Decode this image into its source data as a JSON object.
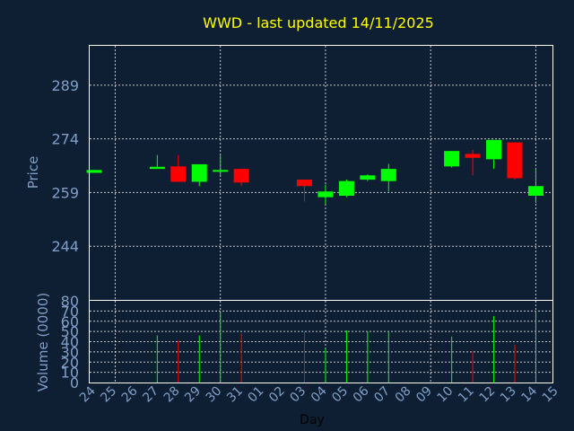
{
  "chart_data": {
    "type": "candlestick",
    "title": "WWD - last updated 14/11/2025",
    "price_panel": {
      "ylabel": "Price",
      "yticks": [
        244,
        259,
        274,
        289
      ],
      "ylim": [
        229,
        300
      ]
    },
    "volume_panel": {
      "ylabel": "Volume (0000)",
      "yticks": [
        0,
        10,
        20,
        30,
        40,
        50,
        60,
        70,
        80
      ],
      "ylim": [
        0,
        80
      ]
    },
    "xlabel": "Day",
    "x_ticks": [
      "24",
      "25",
      "26",
      "27",
      "28",
      "29",
      "30",
      "31",
      "01",
      "02",
      "03",
      "04",
      "05",
      "06",
      "07",
      "08",
      "09",
      "10",
      "11",
      "12",
      "13",
      "14",
      "15"
    ],
    "colors": {
      "up": "#00ff00",
      "down": "#ff0000",
      "title": "#ffff00",
      "background": "#0f1f33"
    },
    "candles": [
      {
        "day": "24",
        "open": 264.5,
        "close": 265.3,
        "high": 265.3,
        "low": 264.5,
        "volume": 0
      },
      {
        "day": "27",
        "open": 265.6,
        "close": 266.2,
        "high": 269.5,
        "low": 265.6,
        "volume": 46
      },
      {
        "day": "28",
        "open": 266.3,
        "close": 262.0,
        "high": 269.5,
        "low": 262.0,
        "volume": 41
      },
      {
        "day": "29",
        "open": 262.0,
        "close": 266.9,
        "high": 266.9,
        "low": 260.8,
        "volume": 46
      },
      {
        "day": "30",
        "open": 264.8,
        "close": 265.3,
        "high": 269.5,
        "low": 263.8,
        "volume": 69
      },
      {
        "day": "31",
        "open": 265.6,
        "close": 261.8,
        "high": 265.6,
        "low": 260.8,
        "volume": 48
      },
      {
        "day": "03",
        "open": 262.6,
        "close": 260.8,
        "high": 262.6,
        "low": 256.5,
        "volume": 50
      },
      {
        "day": "04",
        "open": 257.7,
        "close": 259.3,
        "high": 261.2,
        "low": 255.8,
        "volume": 33
      },
      {
        "day": "05",
        "open": 258.1,
        "close": 262.2,
        "high": 262.6,
        "low": 257.7,
        "volume": 51
      },
      {
        "day": "06",
        "open": 262.6,
        "close": 263.8,
        "high": 264.1,
        "low": 262.2,
        "volume": 50
      },
      {
        "day": "07",
        "open": 262.2,
        "close": 265.6,
        "high": 267.0,
        "low": 259.3,
        "volume": 50
      },
      {
        "day": "10",
        "open": 266.3,
        "close": 270.6,
        "high": 270.6,
        "low": 266.0,
        "volume": 45
      },
      {
        "day": "11",
        "open": 269.8,
        "close": 268.7,
        "high": 270.9,
        "low": 263.8,
        "volume": 31
      },
      {
        "day": "12",
        "open": 268.3,
        "close": 273.7,
        "high": 273.7,
        "low": 265.6,
        "volume": 65
      },
      {
        "day": "13",
        "open": 273.0,
        "close": 263.0,
        "high": 273.0,
        "low": 262.6,
        "volume": 37
      },
      {
        "day": "14",
        "open": 258.1,
        "close": 260.8,
        "high": 265.6,
        "low": 256.1,
        "volume": 70
      }
    ]
  }
}
